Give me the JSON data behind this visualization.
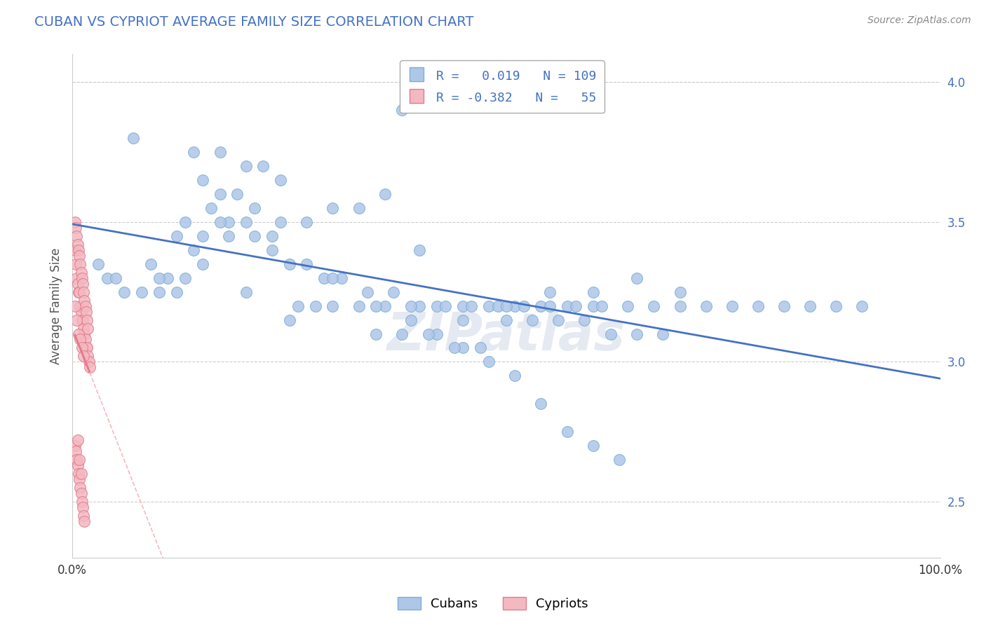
{
  "title": "CUBAN VS CYPRIOT AVERAGE FAMILY SIZE CORRELATION CHART",
  "source_text": "Source: ZipAtlas.com",
  "ylabel": "Average Family Size",
  "watermark": "ZIPatlas",
  "cuban_color": "#aec6e8",
  "cypriot_color": "#f4b8c1",
  "cuban_edge_color": "#7bafd4",
  "cypriot_edge_color": "#e07b8a",
  "trend_cuban_color": "#4472c4",
  "trend_cypriot_solid_color": "#e07b8a",
  "trend_cypriot_dash_color": "#f4b8c1",
  "xlim": [
    0.0,
    1.0
  ],
  "ylim": [
    2.3,
    4.1
  ],
  "yticks": [
    2.5,
    3.0,
    3.5,
    4.0
  ],
  "xticks": [
    0.0,
    0.2,
    0.4,
    0.6,
    0.8,
    1.0
  ],
  "xticklabels": [
    "0.0%",
    "",
    "",
    "",
    "",
    "100.0%"
  ],
  "background_color": "#ffffff",
  "grid_color": "#cccccc",
  "title_color": "#4472c4",
  "cuban_x": [
    0.38,
    0.07,
    0.14,
    0.17,
    0.2,
    0.22,
    0.24,
    0.15,
    0.17,
    0.19,
    0.21,
    0.16,
    0.18,
    0.2,
    0.13,
    0.15,
    0.12,
    0.14,
    0.23,
    0.25,
    0.27,
    0.29,
    0.31,
    0.34,
    0.37,
    0.4,
    0.28,
    0.26,
    0.3,
    0.33,
    0.36,
    0.39,
    0.42,
    0.45,
    0.48,
    0.51,
    0.54,
    0.57,
    0.6,
    0.43,
    0.46,
    0.49,
    0.52,
    0.55,
    0.58,
    0.61,
    0.64,
    0.67,
    0.7,
    0.73,
    0.76,
    0.79,
    0.82,
    0.85,
    0.88,
    0.91,
    0.06,
    0.08,
    0.1,
    0.12,
    0.04,
    0.05,
    0.03,
    0.09,
    0.11,
    0.13,
    0.5,
    0.53,
    0.56,
    0.59,
    0.62,
    0.65,
    0.68,
    0.18,
    0.21,
    0.24,
    0.27,
    0.3,
    0.33,
    0.36,
    0.39,
    0.42,
    0.45,
    0.48,
    0.51,
    0.54,
    0.57,
    0.6,
    0.63,
    0.4,
    0.35,
    0.25,
    0.2,
    0.15,
    0.1,
    0.47,
    0.44,
    0.41,
    0.38,
    0.35,
    0.17,
    0.23,
    0.3,
    0.55,
    0.5,
    0.45,
    0.6,
    0.65,
    0.7
  ],
  "cuban_y": [
    3.9,
    3.8,
    3.75,
    3.75,
    3.7,
    3.7,
    3.65,
    3.65,
    3.6,
    3.6,
    3.55,
    3.55,
    3.5,
    3.5,
    3.5,
    3.45,
    3.45,
    3.4,
    3.4,
    3.35,
    3.35,
    3.3,
    3.3,
    3.25,
    3.25,
    3.2,
    3.2,
    3.2,
    3.2,
    3.2,
    3.2,
    3.2,
    3.2,
    3.2,
    3.2,
    3.2,
    3.2,
    3.2,
    3.2,
    3.2,
    3.2,
    3.2,
    3.2,
    3.2,
    3.2,
    3.2,
    3.2,
    3.2,
    3.2,
    3.2,
    3.2,
    3.2,
    3.2,
    3.2,
    3.2,
    3.2,
    3.25,
    3.25,
    3.25,
    3.25,
    3.3,
    3.3,
    3.35,
    3.35,
    3.3,
    3.3,
    3.15,
    3.15,
    3.15,
    3.15,
    3.1,
    3.1,
    3.1,
    3.45,
    3.45,
    3.5,
    3.5,
    3.55,
    3.55,
    3.6,
    3.15,
    3.1,
    3.05,
    3.0,
    2.95,
    2.85,
    2.75,
    2.7,
    2.65,
    3.4,
    3.1,
    3.15,
    3.25,
    3.35,
    3.3,
    3.05,
    3.05,
    3.1,
    3.1,
    3.2,
    3.5,
    3.45,
    3.3,
    3.25,
    3.2,
    3.15,
    3.25,
    3.3,
    3.25
  ],
  "cypriot_x": [
    0.003,
    0.004,
    0.005,
    0.006,
    0.007,
    0.008,
    0.009,
    0.01,
    0.011,
    0.012,
    0.013,
    0.014,
    0.015,
    0.016,
    0.017,
    0.018,
    0.019,
    0.02,
    0.003,
    0.004,
    0.005,
    0.006,
    0.007,
    0.008,
    0.009,
    0.01,
    0.011,
    0.012,
    0.013,
    0.014,
    0.015,
    0.016,
    0.017,
    0.018,
    0.003,
    0.005,
    0.007,
    0.009,
    0.011,
    0.013,
    0.003,
    0.004,
    0.005,
    0.006,
    0.007,
    0.008,
    0.009,
    0.01,
    0.011,
    0.012,
    0.013,
    0.014,
    0.006,
    0.008,
    0.01
  ],
  "cypriot_y": [
    3.4,
    3.35,
    3.3,
    3.28,
    3.25,
    3.25,
    3.2,
    3.18,
    3.15,
    3.15,
    3.12,
    3.1,
    3.08,
    3.05,
    3.05,
    3.02,
    3.0,
    2.98,
    3.5,
    3.48,
    3.45,
    3.42,
    3.4,
    3.38,
    3.35,
    3.32,
    3.3,
    3.28,
    3.25,
    3.22,
    3.2,
    3.18,
    3.15,
    3.12,
    3.2,
    3.15,
    3.1,
    3.08,
    3.05,
    3.02,
    2.7,
    2.68,
    2.65,
    2.63,
    2.6,
    2.58,
    2.55,
    2.53,
    2.5,
    2.48,
    2.45,
    2.43,
    2.72,
    2.65,
    2.6
  ],
  "cypriot_trend_x0": 0.003,
  "cypriot_trend_x1": 0.02,
  "cypriot_trend_dash_x1": 0.18,
  "cuban_trend_x0": 0.0,
  "cuban_trend_x1": 1.0
}
